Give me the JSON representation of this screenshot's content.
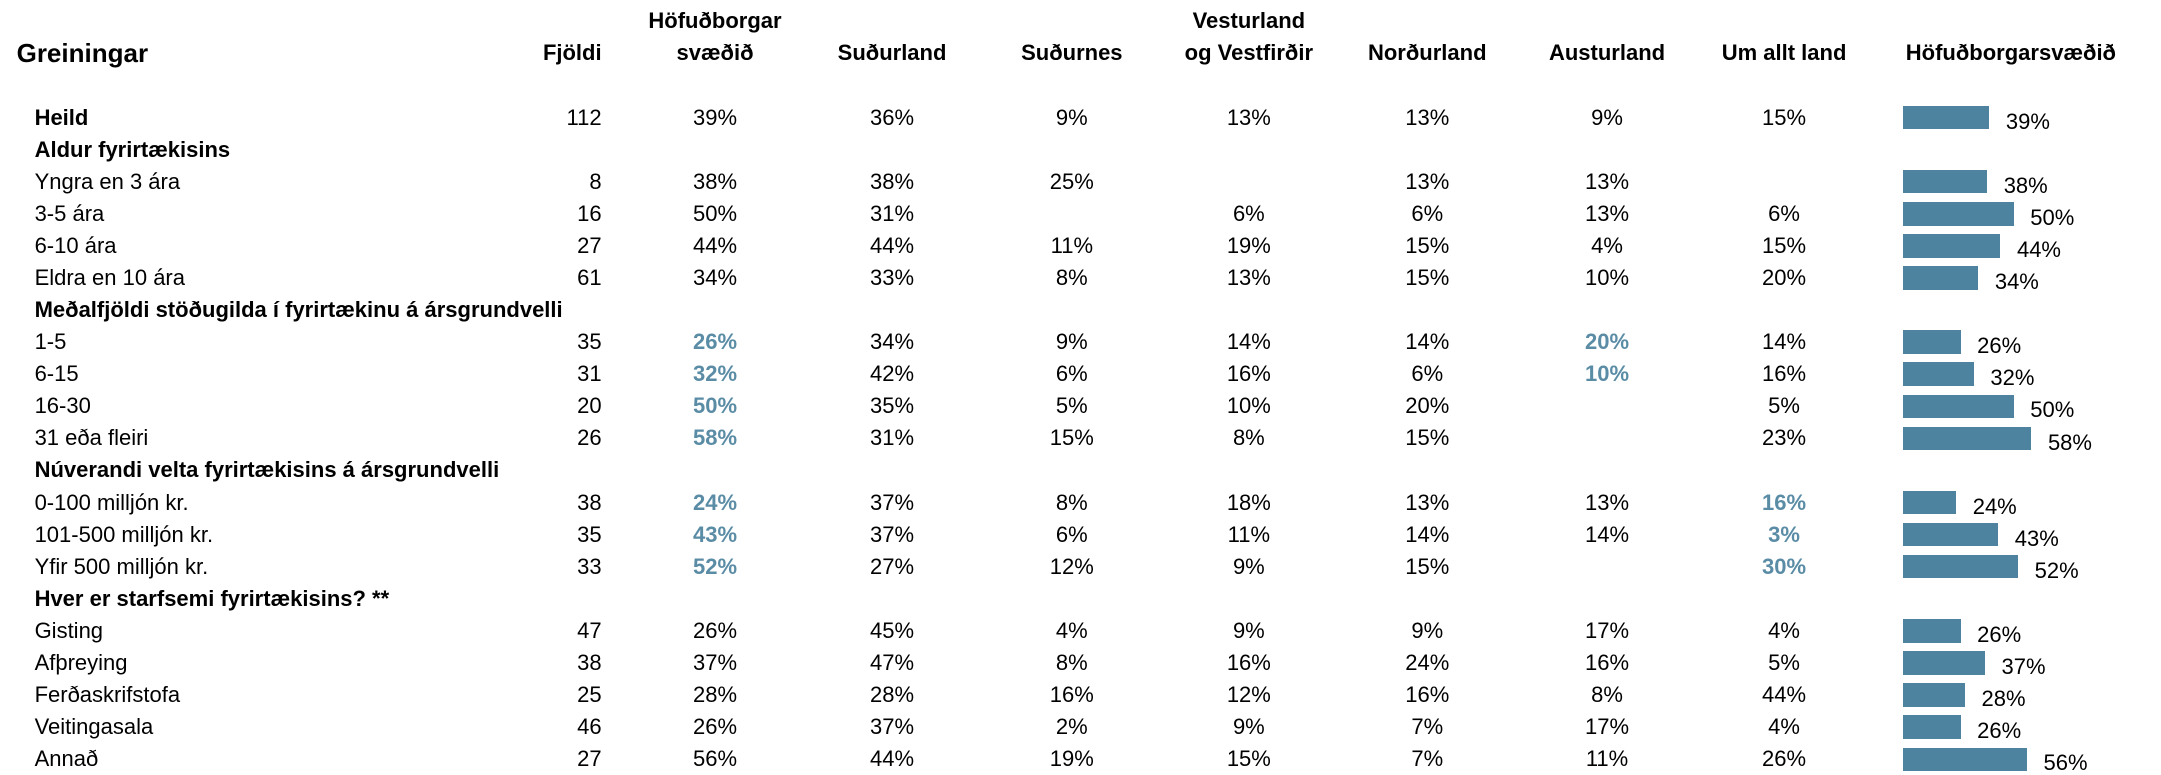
{
  "header": {
    "title": "Greiningar",
    "columns": [
      [
        "Fjöldi"
      ],
      [
        "Höfuðborgar",
        "svæðið"
      ],
      [
        "Suðurland"
      ],
      [
        "Suðurnes"
      ],
      [
        "Vesturland",
        "og Vestfirðir"
      ],
      [
        "Norðurland"
      ],
      [
        "Austurland"
      ],
      [
        "Um allt land"
      ]
    ],
    "bar_title": "Höfuðborgarsvæðið"
  },
  "table": {
    "rows": [
      {
        "label": "Heild",
        "bold": true,
        "cells": [
          "112",
          {
            "value": 39,
            "label": "39%"
          },
          "36%",
          "9%",
          "13%",
          "13%",
          "9%",
          "15%"
        ]
      },
      {
        "label": "Aldur fyrirtækisins",
        "section": true
      },
      {
        "label": "Yngra en 3 ára",
        "cells": [
          "8",
          {
            "value": 38,
            "label": "38%"
          },
          "38%",
          "25%",
          null,
          "13%",
          "13%",
          null
        ]
      },
      {
        "label": "3-5 ára",
        "cells": [
          "16",
          {
            "value": 50,
            "label": "50%"
          },
          "31%",
          null,
          "6%",
          "6%",
          "13%",
          "6%"
        ]
      },
      {
        "label": "6-10 ára",
        "cells": [
          "27",
          {
            "value": 44,
            "label": "44%"
          },
          "44%",
          "11%",
          "19%",
          "15%",
          "4%",
          "15%"
        ]
      },
      {
        "label": "Eldra en 10 ára",
        "cells": [
          "61",
          {
            "value": 34,
            "label": "34%"
          },
          "33%",
          "8%",
          "13%",
          "15%",
          "10%",
          "20%"
        ]
      },
      {
        "label": "Meðalfjöldi stöðugilda í fyrirtækinu á ársgrundvelli",
        "section": true
      },
      {
        "label": "1-5",
        "cells": [
          "35",
          {
            "value": 26,
            "label": "26%"
          },
          "34%",
          "9%",
          "14%",
          "14%",
          "20%",
          "14%"
        ],
        "highlight": [
          1,
          6
        ]
      },
      {
        "label": "6-15",
        "cells": [
          "31",
          {
            "value": 32,
            "label": "32%"
          },
          "42%",
          "6%",
          "16%",
          "6%",
          "10%",
          "16%"
        ],
        "highlight": [
          1,
          6
        ]
      },
      {
        "label": "16-30",
        "cells": [
          "20",
          {
            "value": 50,
            "label": "50%"
          },
          "35%",
          "5%",
          "10%",
          "20%",
          null,
          "5%"
        ],
        "highlight": [
          1
        ]
      },
      {
        "label": "31 eða fleiri",
        "cells": [
          "26",
          {
            "value": 58,
            "label": "58%"
          },
          "31%",
          "15%",
          "8%",
          "15%",
          null,
          "23%"
        ],
        "highlight": [
          1
        ]
      },
      {
        "label": "Núverandi velta fyrirtækisins á ársgrundvelli",
        "section": true
      },
      {
        "label": "0-100 milljón kr.",
        "cells": [
          "38",
          {
            "value": 24,
            "label": "24%"
          },
          "37%",
          "8%",
          "18%",
          "13%",
          "13%",
          "16%"
        ],
        "highlight": [
          1,
          7
        ]
      },
      {
        "label": "101-500 milljón kr.",
        "cells": [
          "35",
          {
            "value": 43,
            "label": "43%"
          },
          "37%",
          "6%",
          "11%",
          "14%",
          "14%",
          "3%"
        ],
        "highlight": [
          1,
          7
        ]
      },
      {
        "label": "Yfir 500 milljón kr.",
        "cells": [
          "33",
          {
            "value": 52,
            "label": "52%"
          },
          "27%",
          "12%",
          "9%",
          "15%",
          null,
          "30%"
        ],
        "highlight": [
          1,
          7
        ]
      },
      {
        "label": "Hver er starfsemi fyrirtækisins? **",
        "section": true
      },
      {
        "label": "Gisting",
        "cells": [
          "47",
          {
            "value": 26,
            "label": "26%"
          },
          "45%",
          "4%",
          "9%",
          "9%",
          "17%",
          "4%"
        ]
      },
      {
        "label": "Afþreying",
        "cells": [
          "38",
          {
            "value": 37,
            "label": "37%"
          },
          "47%",
          "8%",
          "16%",
          "24%",
          "16%",
          "5%"
        ]
      },
      {
        "label": "Ferðaskrifstofa",
        "cells": [
          "25",
          {
            "value": 28,
            "label": "28%"
          },
          "28%",
          "16%",
          "12%",
          "16%",
          "8%",
          "44%"
        ]
      },
      {
        "label": "Veitingasala",
        "cells": [
          "46",
          {
            "value": 26,
            "label": "26%"
          },
          "37%",
          "2%",
          "9%",
          "7%",
          "17%",
          "4%"
        ]
      },
      {
        "label": "Annað",
        "cells": [
          "27",
          {
            "value": 56,
            "label": "56%"
          },
          "44%",
          "19%",
          "15%",
          "7%",
          "11%",
          "26%"
        ]
      }
    ]
  }
}
